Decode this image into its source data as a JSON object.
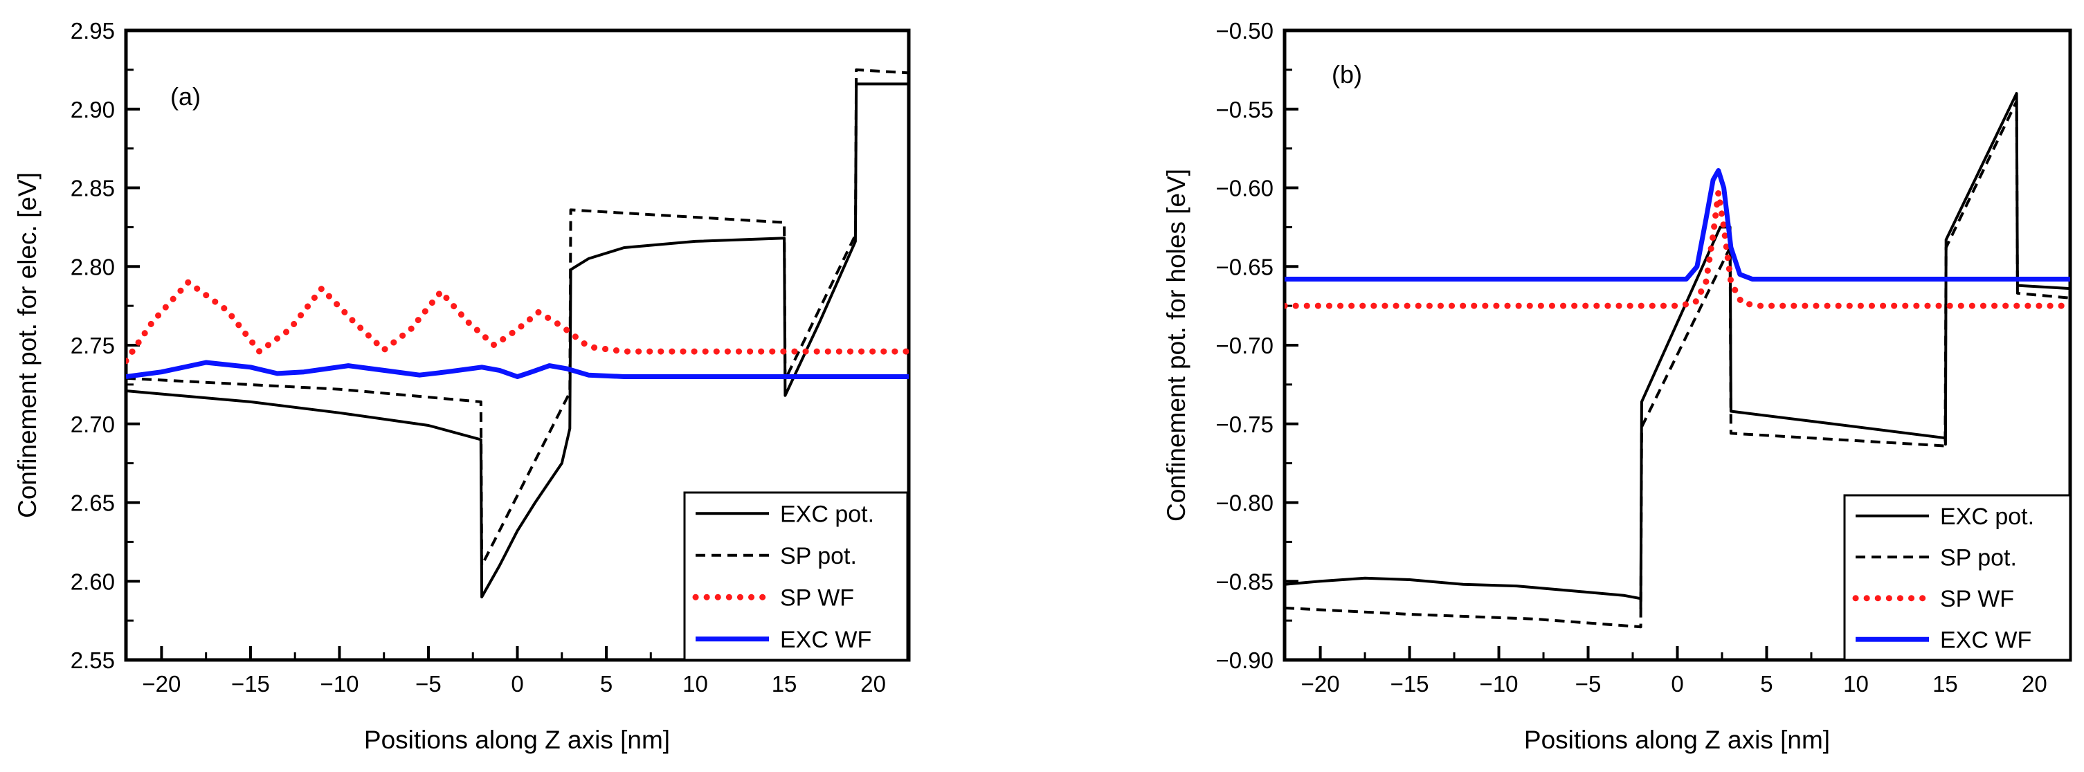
{
  "chart_data": [
    {
      "type": "line",
      "panel_label": "(a)",
      "xlabel": "Positions along Z axis [nm]",
      "ylabel": "Confinement pot. for elec. [eV]",
      "xlim": [
        -22,
        22
      ],
      "ylim": [
        2.55,
        2.95
      ],
      "xticks": [
        -20,
        -15,
        -10,
        -5,
        0,
        5,
        10,
        15,
        20
      ],
      "yticks": [
        "2.55",
        "2.60",
        "2.65",
        "2.70",
        "2.75",
        "2.80",
        "2.85",
        "2.90",
        "2.95"
      ],
      "legend_position": "bottom-right",
      "series": [
        {
          "name": "EXC pot.",
          "color": "#000000",
          "style": "solid",
          "points": [
            [
              -22,
              2.721
            ],
            [
              -15,
              2.714
            ],
            [
              -10,
              2.707
            ],
            [
              -5,
              2.699
            ],
            [
              -2.05,
              2.69
            ],
            [
              -2,
              2.59
            ],
            [
              -1,
              2.61
            ],
            [
              0,
              2.632
            ],
            [
              1,
              2.65
            ],
            [
              2.5,
              2.675
            ],
            [
              2.95,
              2.697
            ],
            [
              3,
              2.798
            ],
            [
              4,
              2.805
            ],
            [
              6,
              2.812
            ],
            [
              10,
              2.816
            ],
            [
              15,
              2.818
            ],
            [
              15.05,
              2.718
            ],
            [
              17,
              2.765
            ],
            [
              19,
              2.816
            ],
            [
              19.05,
              2.916
            ],
            [
              22,
              2.916
            ]
          ]
        },
        {
          "name": "SP pot.",
          "color": "#000000",
          "style": "dashed",
          "points": [
            [
              -22,
              2.729
            ],
            [
              -10,
              2.722
            ],
            [
              -2.05,
              2.714
            ],
            [
              -2,
              2.61
            ],
            [
              2.95,
              2.72
            ],
            [
              3,
              2.836
            ],
            [
              15,
              2.828
            ],
            [
              15.05,
              2.728
            ],
            [
              19,
              2.82
            ],
            [
              19.05,
              2.925
            ],
            [
              22,
              2.923
            ]
          ]
        },
        {
          "name": "SP WF",
          "color": "#ff1a1a",
          "style": "dotted",
          "points": [
            [
              -22,
              2.74
            ],
            [
              -20.5,
              2.765
            ],
            [
              -18.5,
              2.79
            ],
            [
              -16.3,
              2.772
            ],
            [
              -14.5,
              2.746
            ],
            [
              -12.8,
              2.76
            ],
            [
              -11,
              2.786
            ],
            [
              -9.2,
              2.765
            ],
            [
              -7.5,
              2.747
            ],
            [
              -6,
              2.76
            ],
            [
              -4.3,
              2.784
            ],
            [
              -2.8,
              2.765
            ],
            [
              -1.3,
              2.75
            ],
            [
              0,
              2.76
            ],
            [
              1.2,
              2.771
            ],
            [
              2.5,
              2.762
            ],
            [
              4,
              2.749
            ],
            [
              6,
              2.746
            ],
            [
              10,
              2.746
            ],
            [
              22,
              2.746
            ]
          ]
        },
        {
          "name": "EXC WF",
          "color": "#0a14ff",
          "style": "solid",
          "points": [
            [
              -22,
              2.73
            ],
            [
              -20,
              2.733
            ],
            [
              -17.5,
              2.739
            ],
            [
              -15,
              2.736
            ],
            [
              -13.5,
              2.732
            ],
            [
              -12,
              2.733
            ],
            [
              -9.5,
              2.737
            ],
            [
              -7.5,
              2.734
            ],
            [
              -5.5,
              2.731
            ],
            [
              -4,
              2.733
            ],
            [
              -2,
              2.736
            ],
            [
              -1,
              2.734
            ],
            [
              0,
              2.73
            ],
            [
              0.8,
              2.733
            ],
            [
              1.8,
              2.737
            ],
            [
              2.8,
              2.735
            ],
            [
              4,
              2.731
            ],
            [
              6,
              2.73
            ],
            [
              22,
              2.73
            ]
          ]
        }
      ]
    },
    {
      "type": "line",
      "panel_label": "(b)",
      "xlabel": "Positions along Z axis [nm]",
      "ylabel": "Confinement pot. for holes [eV]",
      "xlim": [
        -22,
        22
      ],
      "ylim": [
        -0.9,
        -0.5
      ],
      "xticks": [
        -20,
        -15,
        -10,
        -5,
        0,
        5,
        10,
        15,
        20
      ],
      "yticks": [
        "-0.90",
        "-0.85",
        "-0.80",
        "-0.75",
        "-0.70",
        "-0.65",
        "-0.60",
        "-0.55",
        "-0.50"
      ],
      "legend_position": "bottom-right",
      "series": [
        {
          "name": "EXC pot.",
          "color": "#000000",
          "style": "solid",
          "points": [
            [
              -22,
              -0.852
            ],
            [
              -20,
              -0.85
            ],
            [
              -17.5,
              -0.848
            ],
            [
              -15,
              -0.849
            ],
            [
              -12,
              -0.852
            ],
            [
              -9,
              -0.853
            ],
            [
              -6,
              -0.856
            ],
            [
              -3,
              -0.859
            ],
            [
              -2.05,
              -0.861
            ],
            [
              -2.05,
              -0.867
            ],
            [
              -2,
              -0.736
            ],
            [
              2.4,
              -0.625
            ],
            [
              2.95,
              -0.625
            ],
            [
              3,
              -0.742
            ],
            [
              8,
              -0.749
            ],
            [
              15,
              -0.759
            ],
            [
              15.02,
              -0.763
            ],
            [
              15.05,
              -0.633
            ],
            [
              19,
              -0.54
            ],
            [
              19.05,
              -0.662
            ],
            [
              22,
              -0.664
            ]
          ]
        },
        {
          "name": "SP pot.",
          "color": "#000000",
          "style": "dashed",
          "points": [
            [
              -22,
              -0.867
            ],
            [
              -15,
              -0.871
            ],
            [
              -8,
              -0.874
            ],
            [
              -2.05,
              -0.879
            ],
            [
              -2.05,
              -0.873
            ],
            [
              -2,
              -0.752
            ],
            [
              2.95,
              -0.638
            ],
            [
              3,
              -0.756
            ],
            [
              9,
              -0.76
            ],
            [
              15,
              -0.764
            ],
            [
              15.05,
              -0.638
            ],
            [
              19,
              -0.545
            ],
            [
              19.05,
              -0.667
            ],
            [
              22,
              -0.67
            ]
          ]
        },
        {
          "name": "SP WF",
          "color": "#ff1a1a",
          "style": "dotted",
          "points": [
            [
              -22,
              -0.675
            ],
            [
              0,
              -0.675
            ],
            [
              1,
              -0.673
            ],
            [
              1.6,
              -0.66
            ],
            [
              2,
              -0.63
            ],
            [
              2.3,
              -0.603
            ],
            [
              2.6,
              -0.625
            ],
            [
              3,
              -0.66
            ],
            [
              3.6,
              -0.673
            ],
            [
              4.5,
              -0.675
            ],
            [
              22,
              -0.675
            ]
          ]
        },
        {
          "name": "EXC WF",
          "color": "#0a14ff",
          "style": "solid",
          "points": [
            [
              -22,
              -0.658
            ],
            [
              0.5,
              -0.658
            ],
            [
              1.1,
              -0.65
            ],
            [
              1.6,
              -0.62
            ],
            [
              2,
              -0.595
            ],
            [
              2.3,
              -0.589
            ],
            [
              2.6,
              -0.6
            ],
            [
              3,
              -0.638
            ],
            [
              3.5,
              -0.655
            ],
            [
              4.2,
              -0.658
            ],
            [
              22,
              -0.658
            ]
          ]
        }
      ]
    }
  ]
}
